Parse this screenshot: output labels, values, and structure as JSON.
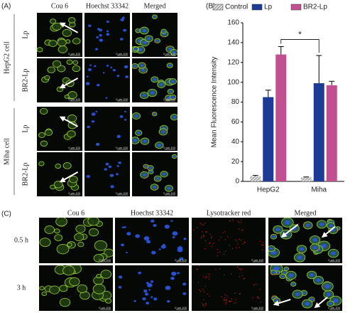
{
  "panel_a": {
    "label": "(A)",
    "columns": [
      "Cou 6",
      "Hoechst 33342",
      "Merged"
    ],
    "groups": [
      {
        "name": "HepG2 cell",
        "rows": [
          "Lp",
          "BR2-Lp"
        ]
      },
      {
        "name": "Miha cell",
        "rows": [
          "Lp",
          "BR2-Lp"
        ]
      }
    ],
    "scale_label": "0 µm 100"
  },
  "chart_data": {
    "type": "bar",
    "label": "(B)",
    "y_label": "Mean Fluorescence Intensity",
    "categories": [
      "HepG2",
      "Miha"
    ],
    "series": [
      {
        "name": "Control",
        "color": "#9a9a9a",
        "hatch": true,
        "values": [
          5,
          4
        ],
        "errors": [
          1,
          0.5
        ]
      },
      {
        "name": "Lp",
        "color": "#1d3a94",
        "hatch": false,
        "values": [
          85,
          99
        ],
        "errors": [
          7,
          28
        ]
      },
      {
        "name": "BR2-Lp",
        "color": "#c0508f",
        "hatch": false,
        "values": [
          128,
          97
        ],
        "errors": [
          8,
          4
        ]
      }
    ],
    "ylim": [
      0,
      160
    ],
    "yticks": [
      0,
      20,
      40,
      60,
      80,
      100,
      120,
      140,
      160
    ],
    "grid": false,
    "annotation": "*",
    "legend": "top"
  },
  "panel_c": {
    "label": "(C)",
    "columns": [
      "Cou 6",
      "Hoechst 33342",
      "Lysotracker red",
      "Merged"
    ],
    "rows": [
      "0.5 h",
      "3 h"
    ],
    "scale_label": "0 µm 100"
  }
}
